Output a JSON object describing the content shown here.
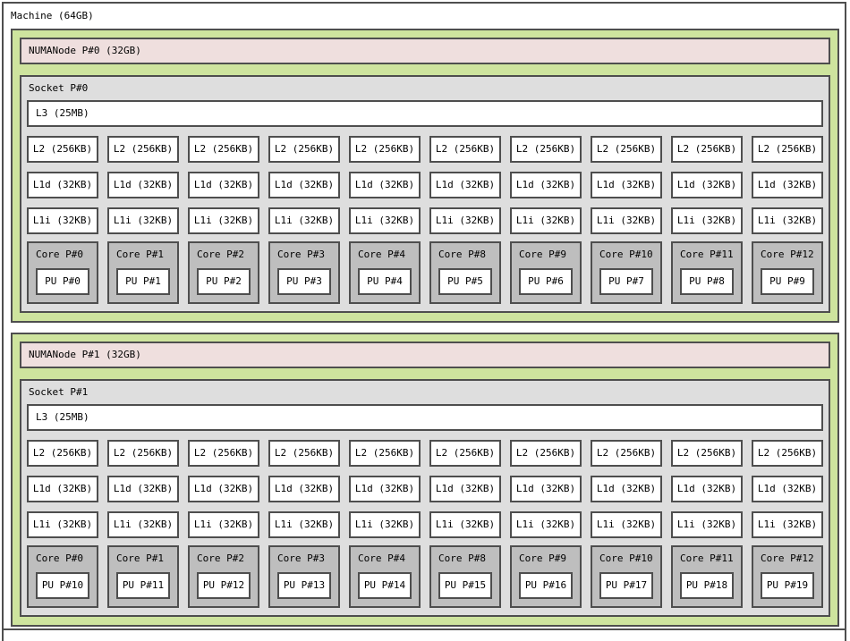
{
  "machine": {
    "label": "Machine (64GB)"
  },
  "colors": {
    "numa_bg": "#cee49e",
    "numa_label_bg": "#efdfde",
    "socket_bg": "#dedede",
    "core_bg": "#bebebe",
    "box_bg": "#ffffff",
    "border": "#4e4e4e"
  },
  "numa_nodes": [
    {
      "label": "NUMANode P#0 (32GB)",
      "socket": {
        "label": "Socket P#0",
        "l3_label": "L3 (25MB)",
        "l2_labels": [
          "L2 (256KB)",
          "L2 (256KB)",
          "L2 (256KB)",
          "L2 (256KB)",
          "L2 (256KB)",
          "L2 (256KB)",
          "L2 (256KB)",
          "L2 (256KB)",
          "L2 (256KB)",
          "L2 (256KB)"
        ],
        "l1d_labels": [
          "L1d (32KB)",
          "L1d (32KB)",
          "L1d (32KB)",
          "L1d (32KB)",
          "L1d (32KB)",
          "L1d (32KB)",
          "L1d (32KB)",
          "L1d (32KB)",
          "L1d (32KB)",
          "L1d (32KB)"
        ],
        "l1i_labels": [
          "L1i (32KB)",
          "L1i (32KB)",
          "L1i (32KB)",
          "L1i (32KB)",
          "L1i (32KB)",
          "L1i (32KB)",
          "L1i (32KB)",
          "L1i (32KB)",
          "L1i (32KB)",
          "L1i (32KB)"
        ],
        "cores": [
          {
            "label": "Core P#0",
            "pu": "PU P#0"
          },
          {
            "label": "Core P#1",
            "pu": "PU P#1"
          },
          {
            "label": "Core P#2",
            "pu": "PU P#2"
          },
          {
            "label": "Core P#3",
            "pu": "PU P#3"
          },
          {
            "label": "Core P#4",
            "pu": "PU P#4"
          },
          {
            "label": "Core P#8",
            "pu": "PU P#5"
          },
          {
            "label": "Core P#9",
            "pu": "PU P#6"
          },
          {
            "label": "Core P#10",
            "pu": "PU P#7"
          },
          {
            "label": "Core P#11",
            "pu": "PU P#8"
          },
          {
            "label": "Core P#12",
            "pu": "PU P#9"
          }
        ]
      }
    },
    {
      "label": "NUMANode P#1 (32GB)",
      "socket": {
        "label": "Socket P#1",
        "l3_label": "L3 (25MB)",
        "l2_labels": [
          "L2 (256KB)",
          "L2 (256KB)",
          "L2 (256KB)",
          "L2 (256KB)",
          "L2 (256KB)",
          "L2 (256KB)",
          "L2 (256KB)",
          "L2 (256KB)",
          "L2 (256KB)",
          "L2 (256KB)"
        ],
        "l1d_labels": [
          "L1d (32KB)",
          "L1d (32KB)",
          "L1d (32KB)",
          "L1d (32KB)",
          "L1d (32KB)",
          "L1d (32KB)",
          "L1d (32KB)",
          "L1d (32KB)",
          "L1d (32KB)",
          "L1d (32KB)"
        ],
        "l1i_labels": [
          "L1i (32KB)",
          "L1i (32KB)",
          "L1i (32KB)",
          "L1i (32KB)",
          "L1i (32KB)",
          "L1i (32KB)",
          "L1i (32KB)",
          "L1i (32KB)",
          "L1i (32KB)",
          "L1i (32KB)"
        ],
        "cores": [
          {
            "label": "Core P#0",
            "pu": "PU P#10"
          },
          {
            "label": "Core P#1",
            "pu": "PU P#11"
          },
          {
            "label": "Core P#2",
            "pu": "PU P#12"
          },
          {
            "label": "Core P#3",
            "pu": "PU P#13"
          },
          {
            "label": "Core P#4",
            "pu": "PU P#14"
          },
          {
            "label": "Core P#8",
            "pu": "PU P#15"
          },
          {
            "label": "Core P#9",
            "pu": "PU P#16"
          },
          {
            "label": "Core P#10",
            "pu": "PU P#17"
          },
          {
            "label": "Core P#11",
            "pu": "PU P#18"
          },
          {
            "label": "Core P#12",
            "pu": "PU P#19"
          }
        ]
      }
    }
  ]
}
